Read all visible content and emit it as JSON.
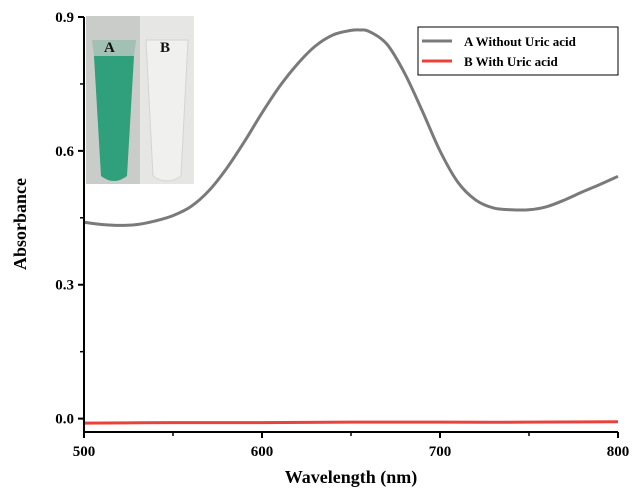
{
  "chart_data": {
    "type": "line",
    "title": "",
    "xlabel": "Wavelength (nm)",
    "ylabel": "Absorbance",
    "xlim": [
      500,
      800
    ],
    "ylim": [
      -0.03,
      0.9
    ],
    "xticks": [
      500,
      600,
      700,
      800
    ],
    "yticks": [
      0.0,
      0.3,
      0.6,
      0.9
    ],
    "xtick_labels": [
      "500",
      "600",
      "700",
      "800"
    ],
    "ytick_labels": [
      "0.0",
      "0.3",
      "0.6",
      "0.9"
    ],
    "grid": false,
    "legend_position": "top-right",
    "series": [
      {
        "name": "A Without Uric acid",
        "color": "#7a7a7a",
        "x": [
          500,
          510,
          520,
          530,
          540,
          550,
          560,
          570,
          580,
          590,
          600,
          610,
          620,
          630,
          640,
          650,
          655,
          660,
          670,
          680,
          690,
          700,
          710,
          720,
          730,
          740,
          750,
          760,
          770,
          780,
          790,
          800
        ],
        "y": [
          0.44,
          0.435,
          0.433,
          0.435,
          0.443,
          0.455,
          0.475,
          0.51,
          0.56,
          0.62,
          0.685,
          0.745,
          0.795,
          0.835,
          0.86,
          0.87,
          0.871,
          0.868,
          0.84,
          0.775,
          0.69,
          0.6,
          0.53,
          0.49,
          0.472,
          0.468,
          0.468,
          0.475,
          0.49,
          0.508,
          0.525,
          0.543
        ]
      },
      {
        "name": "B With Uric acid",
        "color": "#e8423a",
        "x": [
          500,
          550,
          600,
          650,
          700,
          750,
          800
        ],
        "y": [
          -0.01,
          -0.009,
          -0.009,
          -0.008,
          -0.008,
          -0.008,
          -0.007
        ]
      }
    ],
    "inset": {
      "labels": [
        "A",
        "B"
      ]
    }
  }
}
